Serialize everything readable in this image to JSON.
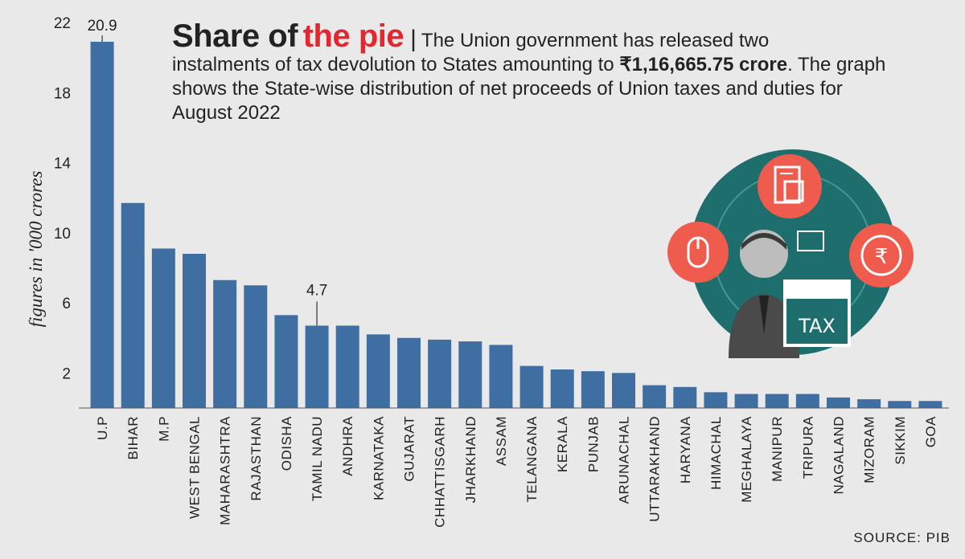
{
  "title": {
    "main": "Share of",
    "accent": "the pie",
    "separator": "|",
    "lead": "The Union government has released two",
    "body_pre": "instalments of tax devolution to States amounting to ",
    "amount": "₹1,16,665.75 crore",
    "body_post": ". The graph shows the State-wise distribution of net proceeds of Union taxes and duties for August 2022"
  },
  "source": "SOURCE: PIB",
  "illustration": {
    "badge_text": "TAX",
    "icons": [
      "document-icon",
      "mouse-icon",
      "rupee-icon",
      "folder-icon",
      "calendar-icon",
      "person-icon"
    ]
  },
  "colors": {
    "bar": "#3f6ea3",
    "accent": "#e3262f",
    "background": "#e9e9e9",
    "icon_circle": "#ef5b4c",
    "disc": "#1f6e6e"
  },
  "chart_data": {
    "type": "bar",
    "ylabel": "figures in '000 crores",
    "xlabel": "",
    "ylim": [
      0,
      22
    ],
    "yticks": [
      2,
      6,
      10,
      14,
      18,
      22
    ],
    "categories": [
      "U.P",
      "BIHAR",
      "M.P",
      "WEST BENGAL",
      "MAHARASHTRA",
      "RAJASTHAN",
      "ODISHA",
      "TAMIL NADU",
      "ANDHRA",
      "KARNATAKA",
      "GUJARAT",
      "CHHATTISGARH",
      "JHARKHAND",
      "ASSAM",
      "TELANGANA",
      "KERALA",
      "PUNJAB",
      "ARUNACHAL",
      "UTTARAKHAND",
      "HARYANA",
      "HIMACHAL",
      "MEGHALAYA",
      "MANIPUR",
      "TRIPURA",
      "NAGALAND",
      "MIZORAM",
      "SIKKIM",
      "GOA"
    ],
    "values": [
      20.9,
      11.7,
      9.1,
      8.8,
      7.3,
      7.0,
      5.3,
      4.7,
      4.7,
      4.2,
      4.0,
      3.9,
      3.8,
      3.6,
      2.4,
      2.2,
      2.1,
      2.0,
      1.3,
      1.2,
      0.9,
      0.8,
      0.8,
      0.8,
      0.6,
      0.5,
      0.4,
      0.4
    ],
    "data_labels": [
      {
        "category": "U.P",
        "text": "20.9"
      },
      {
        "category": "TAMIL NADU",
        "text": "4.7"
      }
    ],
    "grid": false,
    "legend": "none"
  }
}
